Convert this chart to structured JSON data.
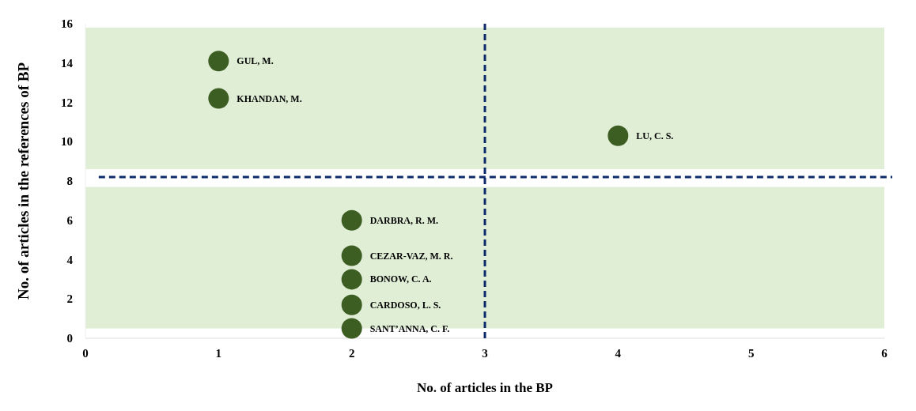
{
  "chart_data": {
    "type": "scatter",
    "xlabel": "No. of articles in the BP",
    "ylabel": "No. of articles in the references of BP",
    "x": [
      1,
      1,
      4,
      2,
      2,
      2,
      2,
      2
    ],
    "values": [
      14.1,
      12.2,
      10.3,
      6,
      4.2,
      3,
      1.7,
      0.5
    ],
    "color": "#3d5e23",
    "marker": "circle",
    "grid": false,
    "xlim": [
      0,
      6
    ],
    "xticks": [
      0,
      1,
      2,
      3,
      4,
      5,
      6
    ],
    "ylim": [
      0,
      16
    ],
    "yticks": [
      0,
      2,
      4,
      6,
      8,
      10,
      12,
      14,
      16
    ],
    "bands": [
      {
        "axis": "y",
        "from": 8.6,
        "to": 15.8,
        "color": "#e0eed6"
      },
      {
        "axis": "y",
        "from": 0.5,
        "to": 7.7,
        "color": "#e0eed6"
      }
    ],
    "ref_lines": [
      {
        "axis": "x",
        "value": 3,
        "color": "#0d2a6b",
        "line_style": "dashed"
      },
      {
        "axis": "y",
        "value": 8.2,
        "color": "#0d2a6b",
        "line_style": "dashed"
      }
    ],
    "annotations": [
      {
        "text": "GUL, M.",
        "x": 1,
        "y": 14.1
      },
      {
        "text": "KHANDAN, M.",
        "x": 1,
        "y": 12.2
      },
      {
        "text": "LU, C. S.",
        "x": 4,
        "y": 10.3
      },
      {
        "text": "DARBRA, R. M.",
        "x": 2,
        "y": 6
      },
      {
        "text": "CEZAR-VAZ, M. R.",
        "x": 2,
        "y": 4.2
      },
      {
        "text": "BONOW, C. A.",
        "x": 2,
        "y": 3
      },
      {
        "text": "CARDOSO, L. S.",
        "x": 2,
        "y": 1.7
      },
      {
        "text": "SANT’ANNA, C. F.",
        "x": 2,
        "y": 0.5
      }
    ]
  }
}
